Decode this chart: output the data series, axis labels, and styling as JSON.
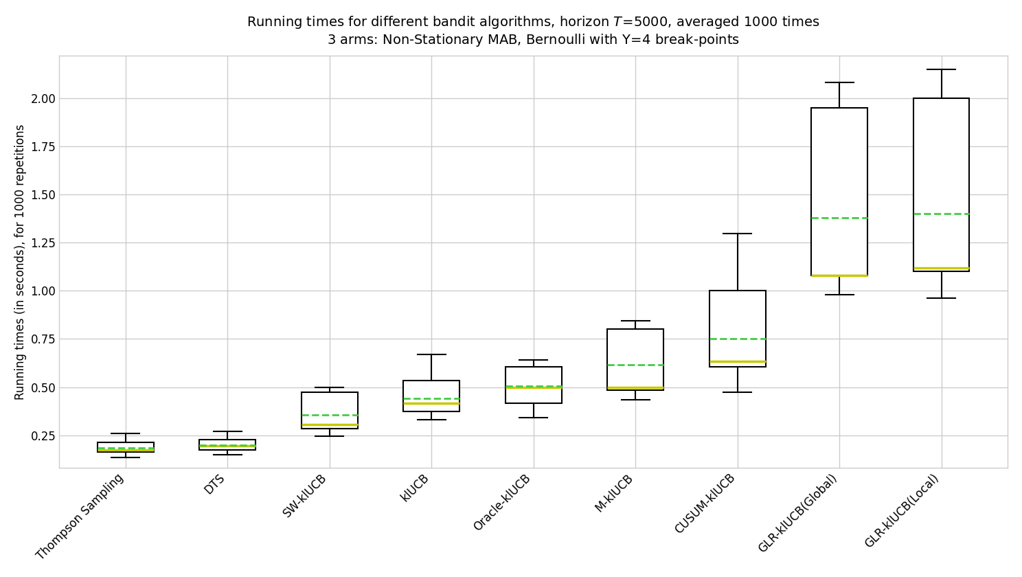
{
  "ylabel": "Running times (in seconds), for 1000 repetitions",
  "algorithms": [
    "Thompson Sampling",
    "DTS",
    "SW-klUCB",
    "klUCB",
    "Oracle-klUCB",
    "M-klUCB",
    "CUSUM-klUCB",
    "GLR-klUCB(Global)",
    "GLR-klUCB(Local)"
  ],
  "box_data": [
    {
      "whislo": 0.135,
      "q1": 0.165,
      "med": 0.175,
      "q3": 0.215,
      "whishi": 0.26,
      "mean": 0.185
    },
    {
      "whislo": 0.148,
      "q1": 0.175,
      "med": 0.195,
      "q3": 0.228,
      "whishi": 0.27,
      "mean": 0.2
    },
    {
      "whislo": 0.245,
      "q1": 0.285,
      "med": 0.305,
      "q3": 0.475,
      "whishi": 0.5,
      "mean": 0.355
    },
    {
      "whislo": 0.33,
      "q1": 0.375,
      "med": 0.415,
      "q3": 0.535,
      "whishi": 0.67,
      "mean": 0.44
    },
    {
      "whislo": 0.34,
      "q1": 0.415,
      "med": 0.5,
      "q3": 0.605,
      "whishi": 0.64,
      "mean": 0.505
    },
    {
      "whislo": 0.435,
      "q1": 0.485,
      "med": 0.5,
      "q3": 0.8,
      "whishi": 0.845,
      "mean": 0.615
    },
    {
      "whislo": 0.475,
      "q1": 0.605,
      "med": 0.635,
      "q3": 1.0,
      "whishi": 1.295,
      "mean": 0.75
    },
    {
      "whislo": 0.98,
      "q1": 1.08,
      "med": 1.08,
      "q3": 1.95,
      "whishi": 2.08,
      "mean": 1.38
    },
    {
      "whislo": 0.96,
      "q1": 1.1,
      "med": 1.12,
      "q3": 2.0,
      "whishi": 2.15,
      "mean": 1.4
    }
  ],
  "median_color": "#c8c800",
  "mean_color": "#44cc44",
  "box_facecolor": "white",
  "box_edgecolor": "black",
  "whisker_color": "black",
  "cap_color": "black",
  "grid_color": "#cccccc",
  "background_color": "white",
  "ylim": [
    0.08,
    2.22
  ],
  "yticks": [
    0.25,
    0.5,
    0.75,
    1.0,
    1.25,
    1.5,
    1.75,
    2.0
  ],
  "title_fontsize": 14,
  "label_fontsize": 12,
  "tick_fontsize": 12,
  "box_width": 0.55
}
